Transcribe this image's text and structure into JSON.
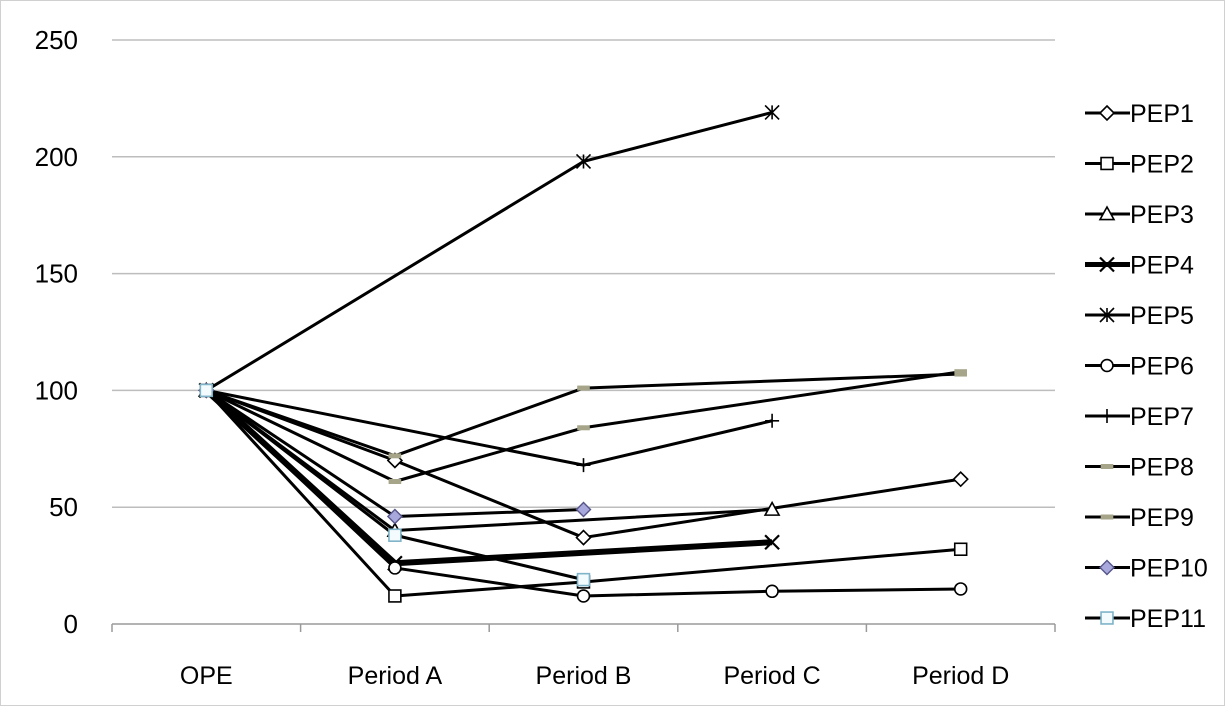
{
  "chart_data": {
    "type": "line",
    "title": "",
    "xlabel": "",
    "ylabel": "",
    "ylim": [
      0,
      250
    ],
    "yticks": [
      0,
      50,
      100,
      150,
      200,
      250
    ],
    "grid": true,
    "legend_position": "right",
    "categories": [
      "OPE",
      "Period A",
      "Period B",
      "Period C",
      "Period D"
    ],
    "series": [
      {
        "name": "PEP1",
        "marker": "diamond",
        "values": [
          100,
          70,
          37,
          null,
          62
        ]
      },
      {
        "name": "PEP2",
        "marker": "square",
        "values": [
          100,
          12,
          18,
          null,
          32
        ]
      },
      {
        "name": "PEP3",
        "marker": "triangle",
        "values": [
          100,
          40,
          null,
          49,
          null
        ]
      },
      {
        "name": "PEP4",
        "marker": "x",
        "values": [
          100,
          26,
          null,
          35,
          null
        ]
      },
      {
        "name": "PEP5",
        "marker": "asterisk",
        "values": [
          100,
          null,
          198,
          219,
          null
        ]
      },
      {
        "name": "PEP6",
        "marker": "circle",
        "values": [
          100,
          24,
          12,
          14,
          15
        ]
      },
      {
        "name": "PEP7",
        "marker": "plus",
        "values": [
          100,
          null,
          68,
          87,
          null
        ]
      },
      {
        "name": "PEP8",
        "marker": "dash",
        "values": [
          100,
          61,
          84,
          null,
          108
        ]
      },
      {
        "name": "PEP9",
        "marker": "dash",
        "values": [
          100,
          72,
          101,
          null,
          107
        ]
      },
      {
        "name": "PEP10",
        "marker": "filled-diamond",
        "values": [
          100,
          46,
          49,
          null,
          null
        ]
      },
      {
        "name": "PEP11",
        "marker": "square-light",
        "values": [
          100,
          38,
          19,
          null,
          null
        ]
      }
    ]
  }
}
